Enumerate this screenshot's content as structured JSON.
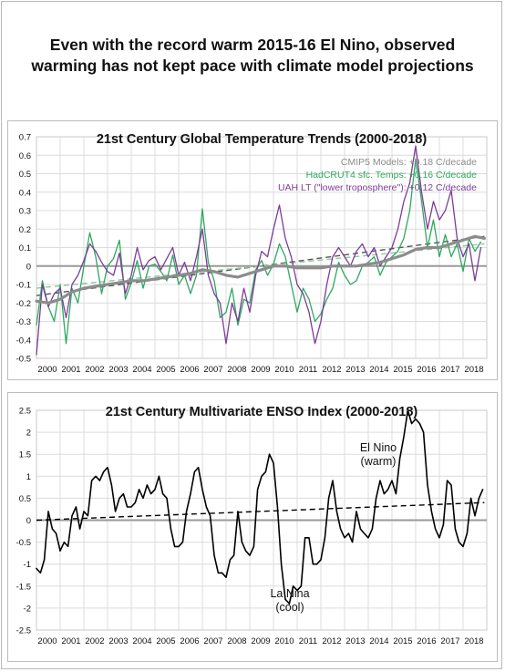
{
  "headline": {
    "line1": "Even with the record warm 2015-16 El Nino, observed",
    "line2": "warming has not kept pace with climate model projections"
  },
  "chart_data": [
    {
      "type": "line",
      "title": "21st Century Global Temperature Trends (2000-2018)",
      "xlim": [
        2000,
        2019
      ],
      "ylim": [
        -0.5,
        0.7
      ],
      "yticks": [
        "0.7",
        "0.6",
        "0.5",
        "0.4",
        "0.3",
        "0.2",
        "0.1",
        "0",
        "-0.1",
        "-0.2",
        "-0.3",
        "-0.4",
        "-0.5"
      ],
      "xticks": [
        "2000",
        "2001",
        "2002",
        "2003",
        "2004",
        "2005",
        "2006",
        "2007",
        "2008",
        "2009",
        "2010",
        "2011",
        "2012",
        "2013",
        "2014",
        "2015",
        "2016",
        "2017",
        "2018"
      ],
      "grid": true,
      "legend_position": "top-right",
      "series": [
        {
          "name": "CMIP5 Models:",
          "trend_label": "+0.18 C/decade",
          "color": "#8c8c8c",
          "x": [
            2000.0,
            2000.5,
            2001.0,
            2001.5,
            2002.0,
            2002.5,
            2003.0,
            2003.5,
            2004.0,
            2004.5,
            2005.0,
            2005.5,
            2006.0,
            2006.5,
            2007.0,
            2007.5,
            2008.0,
            2008.5,
            2009.0,
            2009.5,
            2010.0,
            2010.5,
            2011.0,
            2011.5,
            2012.0,
            2012.5,
            2013.0,
            2013.5,
            2014.0,
            2014.5,
            2015.0,
            2015.5,
            2016.0,
            2016.5,
            2017.0,
            2017.5,
            2018.0,
            2018.5,
            2018.9
          ],
          "y": [
            -0.19,
            -0.2,
            -0.18,
            -0.14,
            -0.12,
            -0.11,
            -0.1,
            -0.09,
            -0.08,
            -0.08,
            -0.07,
            -0.06,
            -0.05,
            -0.04,
            -0.02,
            -0.03,
            -0.05,
            -0.06,
            -0.04,
            -0.02,
            0.0,
            0.0,
            -0.01,
            -0.01,
            -0.01,
            0.0,
            0.0,
            0.0,
            0.01,
            0.02,
            0.04,
            0.06,
            0.09,
            0.1,
            0.1,
            0.12,
            0.14,
            0.16,
            0.15
          ]
        },
        {
          "name": "HadCRUT4 sfc. Temps:",
          "trend_label": "+0.16 C/decade",
          "color": "#2ea85f",
          "x": [
            2000.0,
            2000.25,
            2000.5,
            2000.75,
            2001.0,
            2001.25,
            2001.5,
            2001.75,
            2002.0,
            2002.25,
            2002.5,
            2002.75,
            2003.0,
            2003.25,
            2003.5,
            2003.75,
            2004.0,
            2004.25,
            2004.5,
            2004.75,
            2005.0,
            2005.25,
            2005.5,
            2005.75,
            2006.0,
            2006.25,
            2006.5,
            2006.75,
            2007.0,
            2007.25,
            2007.5,
            2007.75,
            2008.0,
            2008.25,
            2008.5,
            2008.75,
            2009.0,
            2009.25,
            2009.5,
            2009.75,
            2010.0,
            2010.25,
            2010.5,
            2010.75,
            2011.0,
            2011.25,
            2011.5,
            2011.75,
            2012.0,
            2012.25,
            2012.5,
            2012.75,
            2013.0,
            2013.25,
            2013.5,
            2013.75,
            2014.0,
            2014.25,
            2014.5,
            2014.75,
            2015.0,
            2015.25,
            2015.5,
            2015.75,
            2016.0,
            2016.25,
            2016.5,
            2016.75,
            2017.0,
            2017.25,
            2017.5,
            2017.75,
            2018.0,
            2018.25,
            2018.5,
            2018.75
          ],
          "y": [
            -0.32,
            -0.08,
            -0.22,
            -0.3,
            -0.1,
            -0.42,
            -0.12,
            -0.2,
            0.0,
            0.18,
            0.05,
            -0.15,
            0.0,
            0.04,
            0.14,
            -0.18,
            -0.09,
            0.03,
            -0.12,
            0.0,
            0.01,
            -0.03,
            -0.08,
            0.06,
            -0.1,
            -0.05,
            -0.15,
            -0.05,
            0.31,
            0.02,
            -0.08,
            -0.28,
            -0.25,
            -0.12,
            -0.32,
            -0.18,
            -0.2,
            -0.02,
            0.03,
            -0.05,
            0.01,
            0.12,
            0.05,
            -0.1,
            -0.25,
            -0.12,
            -0.18,
            -0.3,
            -0.26,
            -0.18,
            -0.12,
            0.02,
            -0.05,
            -0.1,
            -0.08,
            0.0,
            0.02,
            0.05,
            -0.05,
            0.02,
            0.05,
            0.08,
            0.15,
            0.3,
            0.58,
            0.35,
            0.1,
            0.25,
            0.05,
            0.17,
            0.05,
            0.12,
            -0.03,
            0.15,
            0.08,
            0.13
          ]
        },
        {
          "name": "UAH LT (\"lower troposphere\"):",
          "trend_label": "+0.12 C/decade",
          "color": "#7d3c98",
          "x": [
            2000.0,
            2000.25,
            2000.5,
            2000.75,
            2001.0,
            2001.25,
            2001.5,
            2001.75,
            2002.0,
            2002.25,
            2002.5,
            2002.75,
            2003.0,
            2003.25,
            2003.5,
            2003.75,
            2004.0,
            2004.25,
            2004.5,
            2004.75,
            2005.0,
            2005.25,
            2005.5,
            2005.75,
            2006.0,
            2006.25,
            2006.5,
            2006.75,
            2007.0,
            2007.25,
            2007.5,
            2007.75,
            2008.0,
            2008.25,
            2008.5,
            2008.75,
            2009.0,
            2009.25,
            2009.5,
            2009.75,
            2010.0,
            2010.25,
            2010.5,
            2010.75,
            2011.0,
            2011.25,
            2011.5,
            2011.75,
            2012.0,
            2012.25,
            2012.5,
            2012.75,
            2013.0,
            2013.25,
            2013.5,
            2013.75,
            2014.0,
            2014.25,
            2014.5,
            2014.75,
            2015.0,
            2015.25,
            2015.5,
            2015.75,
            2016.0,
            2016.25,
            2016.5,
            2016.75,
            2017.0,
            2017.25,
            2017.5,
            2017.75,
            2018.0,
            2018.25,
            2018.5,
            2018.75
          ],
          "y": [
            -0.48,
            -0.1,
            -0.22,
            -0.15,
            -0.12,
            -0.28,
            -0.1,
            -0.05,
            0.03,
            0.12,
            0.08,
            0.02,
            -0.03,
            -0.05,
            0.07,
            -0.15,
            -0.05,
            0.1,
            -0.02,
            0.03,
            0.05,
            -0.02,
            0.04,
            0.1,
            -0.05,
            0.02,
            -0.08,
            0.05,
            0.2,
            -0.05,
            -0.15,
            -0.2,
            -0.42,
            -0.2,
            -0.3,
            -0.12,
            -0.25,
            -0.05,
            0.08,
            0.05,
            0.2,
            0.33,
            0.15,
            0.05,
            -0.1,
            -0.15,
            -0.25,
            -0.42,
            -0.3,
            -0.1,
            0.05,
            0.1,
            0.05,
            0.0,
            0.08,
            0.12,
            0.05,
            0.1,
            0.0,
            0.05,
            0.1,
            0.2,
            0.35,
            0.45,
            0.65,
            0.4,
            0.2,
            0.35,
            0.25,
            0.3,
            0.41,
            0.15,
            0.05,
            0.12,
            -0.08,
            0.1
          ]
        }
      ],
      "trend_lines": [
        {
          "x": [
            2000,
            2018.9
          ],
          "y": [
            -0.16,
            0.16
          ],
          "color": "#555555"
        },
        {
          "x": [
            2000,
            2018.9
          ],
          "y": [
            -0.12,
            0.12
          ],
          "color": "#8cc8a0"
        }
      ]
    },
    {
      "type": "line",
      "title": "21st Century Multivariate ENSO Index (2000-2018)",
      "xlim": [
        2000,
        2019
      ],
      "ylim": [
        -2.5,
        2.5
      ],
      "yticks": [
        "2.5",
        "2",
        "1.5",
        "1",
        "0.5",
        "0",
        "-0.5",
        "-1",
        "-1.5",
        "-2",
        "-2.5"
      ],
      "xticks": [
        "2000",
        "2001",
        "2002",
        "2003",
        "2004",
        "2005",
        "2006",
        "2007",
        "2008",
        "2009",
        "2010",
        "2011",
        "2012",
        "2013",
        "2014",
        "2015",
        "2016",
        "2017",
        "2018"
      ],
      "grid": true,
      "annotations": [
        {
          "line1": "El Nino",
          "line2": "(warm)"
        },
        {
          "line1": "La Nina",
          "line2": "(cool)"
        }
      ],
      "series": [
        {
          "color": "#000000",
          "x": [
            2000.0,
            2000.17,
            2000.33,
            2000.5,
            2000.67,
            2000.83,
            2001.0,
            2001.17,
            2001.33,
            2001.5,
            2001.67,
            2001.83,
            2002.0,
            2002.17,
            2002.33,
            2002.5,
            2002.67,
            2002.83,
            2003.0,
            2003.17,
            2003.33,
            2003.5,
            2003.67,
            2003.83,
            2004.0,
            2004.17,
            2004.33,
            2004.5,
            2004.67,
            2004.83,
            2005.0,
            2005.17,
            2005.33,
            2005.5,
            2005.67,
            2005.83,
            2006.0,
            2006.17,
            2006.33,
            2006.5,
            2006.67,
            2006.83,
            2007.0,
            2007.17,
            2007.33,
            2007.5,
            2007.67,
            2007.83,
            2008.0,
            2008.17,
            2008.33,
            2008.5,
            2008.67,
            2008.83,
            2009.0,
            2009.17,
            2009.33,
            2009.5,
            2009.67,
            2009.83,
            2010.0,
            2010.17,
            2010.33,
            2010.5,
            2010.67,
            2010.83,
            2011.0,
            2011.17,
            2011.33,
            2011.5,
            2011.67,
            2011.83,
            2012.0,
            2012.17,
            2012.33,
            2012.5,
            2012.67,
            2012.83,
            2013.0,
            2013.17,
            2013.33,
            2013.5,
            2013.67,
            2013.83,
            2014.0,
            2014.17,
            2014.33,
            2014.5,
            2014.67,
            2014.83,
            2015.0,
            2015.17,
            2015.33,
            2015.5,
            2015.67,
            2015.83,
            2016.0,
            2016.17,
            2016.33,
            2016.5,
            2016.67,
            2016.83,
            2017.0,
            2017.17,
            2017.33,
            2017.5,
            2017.67,
            2017.83,
            2018.0,
            2018.17,
            2018.33,
            2018.5,
            2018.67,
            2018.83
          ],
          "y": [
            -1.1,
            -1.2,
            -0.9,
            0.2,
            -0.2,
            -0.3,
            -0.7,
            -0.5,
            -0.6,
            0.1,
            0.3,
            -0.2,
            0.2,
            0.1,
            0.9,
            1.0,
            0.9,
            1.1,
            1.2,
            0.8,
            0.2,
            0.5,
            0.6,
            0.3,
            0.3,
            0.4,
            0.7,
            0.5,
            0.8,
            0.6,
            0.7,
            1.0,
            0.6,
            0.5,
            -0.2,
            -0.6,
            -0.6,
            -0.5,
            0.2,
            0.6,
            1.1,
            1.2,
            0.7,
            0.3,
            0.1,
            -0.8,
            -1.2,
            -1.2,
            -1.3,
            -0.9,
            -0.8,
            0.2,
            -0.5,
            -0.7,
            -0.8,
            -0.6,
            0.7,
            1.0,
            1.1,
            1.5,
            1.3,
            0.3,
            -1.0,
            -1.8,
            -1.9,
            -1.5,
            -1.6,
            -1.5,
            -0.4,
            -0.4,
            -1.0,
            -1.0,
            -0.9,
            -0.4,
            0.5,
            0.9,
            0.2,
            -0.2,
            -0.4,
            -0.3,
            -0.5,
            0.2,
            -0.2,
            -0.3,
            -0.4,
            -0.2,
            0.5,
            0.9,
            0.6,
            0.7,
            0.9,
            0.6,
            1.4,
            1.9,
            2.5,
            2.2,
            2.3,
            2.2,
            2.0,
            0.8,
            0.2,
            -0.2,
            -0.4,
            -0.1,
            0.9,
            0.8,
            -0.2,
            -0.5,
            -0.6,
            -0.3,
            0.5,
            0.1,
            0.5,
            0.7
          ]
        }
      ],
      "trend_lines": [
        {
          "x": [
            2000,
            2018.9
          ],
          "y": [
            0.0,
            0.4
          ],
          "color": "#000000"
        }
      ]
    }
  ]
}
